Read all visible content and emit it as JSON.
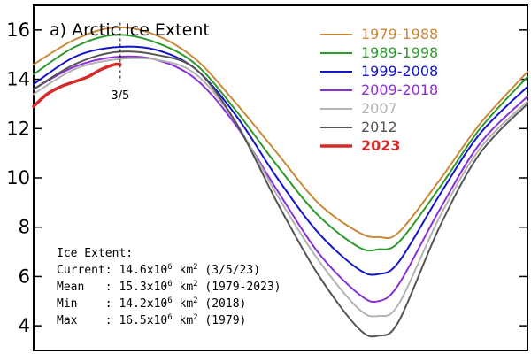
{
  "chart_data": {
    "type": "line",
    "title": "a) Arctic Ice Extent",
    "xlabel": "",
    "ylabel": "",
    "xlim": [
      0,
      365
    ],
    "ylim": [
      3,
      17
    ],
    "yticks": [
      4,
      6,
      8,
      10,
      12,
      14,
      16
    ],
    "grid": false,
    "legend_position": "top-right",
    "marker": {
      "label": "3/5",
      "x": 64
    },
    "series": [
      {
        "name": "1979-1988",
        "color": "#c8893a",
        "x": [
          0,
          30,
          60,
          90,
          120,
          150,
          180,
          210,
          240,
          255,
          270,
          300,
          330,
          365
        ],
        "y": [
          14.6,
          15.6,
          16.1,
          15.8,
          14.8,
          13.0,
          11.0,
          9.0,
          7.8,
          7.6,
          7.8,
          9.9,
          12.2,
          14.3
        ]
      },
      {
        "name": "1989-1998",
        "color": "#2e9a2e",
        "x": [
          0,
          30,
          60,
          90,
          120,
          150,
          180,
          210,
          240,
          255,
          270,
          300,
          330,
          365
        ],
        "y": [
          14.2,
          15.3,
          15.8,
          15.5,
          14.6,
          12.7,
          10.5,
          8.5,
          7.2,
          7.1,
          7.4,
          9.6,
          12.0,
          14.1
        ]
      },
      {
        "name": "1999-2008",
        "color": "#1515c8",
        "x": [
          0,
          30,
          60,
          90,
          120,
          150,
          180,
          210,
          240,
          255,
          270,
          300,
          330,
          365
        ],
        "y": [
          13.8,
          14.9,
          15.3,
          15.2,
          14.4,
          12.5,
          10.0,
          7.8,
          6.3,
          6.1,
          6.6,
          9.3,
          11.8,
          13.7
        ]
      },
      {
        "name": "2009-2018",
        "color": "#8a2fd6",
        "x": [
          0,
          30,
          60,
          90,
          120,
          150,
          180,
          210,
          240,
          255,
          270,
          300,
          330,
          365
        ],
        "y": [
          13.6,
          14.5,
          14.9,
          14.8,
          14.0,
          12.1,
          9.5,
          7.0,
          5.3,
          5.0,
          5.7,
          8.7,
          11.4,
          13.3
        ]
      },
      {
        "name": "2007",
        "color": "#b3b3b3",
        "x": [
          0,
          30,
          60,
          90,
          120,
          150,
          180,
          210,
          240,
          255,
          270,
          300,
          330,
          365
        ],
        "y": [
          13.4,
          14.4,
          14.8,
          14.8,
          14.2,
          12.2,
          9.3,
          6.7,
          4.7,
          4.4,
          4.9,
          8.4,
          11.2,
          13.1
        ]
      },
      {
        "name": "2012",
        "color": "#555555",
        "x": [
          0,
          30,
          60,
          90,
          120,
          150,
          180,
          210,
          240,
          255,
          270,
          300,
          330,
          365
        ],
        "y": [
          13.6,
          14.6,
          15.1,
          15.0,
          14.4,
          12.2,
          9.0,
          6.1,
          3.9,
          3.6,
          4.2,
          8.0,
          11.0,
          13.0
        ]
      },
      {
        "name": "2023",
        "color": "#d42a2a",
        "x": [
          0,
          10,
          20,
          30,
          40,
          50,
          60,
          64
        ],
        "y": [
          12.9,
          13.4,
          13.7,
          13.9,
          14.1,
          14.4,
          14.6,
          14.6
        ]
      }
    ]
  },
  "stats": {
    "heading": "Ice Extent:",
    "lines": [
      {
        "label": "Current: ",
        "value": "14.6x10",
        "exp": "6",
        "unit": " km",
        "unit_exp": "2",
        "note": " (3/5/23)"
      },
      {
        "label": "Mean   : ",
        "value": "15.3x10",
        "exp": "6",
        "unit": " km",
        "unit_exp": "2",
        "note": " (1979-2023)"
      },
      {
        "label": "Min    : ",
        "value": "14.2x10",
        "exp": "6",
        "unit": " km",
        "unit_exp": "2",
        "note": " (2018)"
      },
      {
        "label": "Max    : ",
        "value": "16.5x10",
        "exp": "6",
        "unit": " km",
        "unit_exp": "2",
        "note": " (1979)"
      }
    ]
  }
}
